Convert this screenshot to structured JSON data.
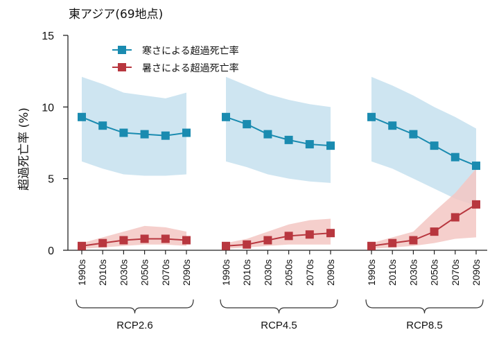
{
  "chart_data": {
    "type": "line",
    "title": "東アジア(69地点)",
    "ylabel": "超過死亡率 (%)",
    "ylim": [
      0,
      15
    ],
    "yticks": [
      0,
      5,
      10,
      15
    ],
    "x": [
      "1990s",
      "2010s",
      "2030s",
      "2050s",
      "2070s",
      "2090s"
    ],
    "legend_position": "top-left",
    "colors": {
      "cold": "#1a8bb0",
      "heat": "#b8373f",
      "cold_band": "#c6e1ee",
      "heat_band": "#f3c7c3"
    },
    "panels": [
      {
        "label": "RCP2.6",
        "series": [
          {
            "name": "寒さによる超過死亡率",
            "values": [
              9.3,
              8.7,
              8.2,
              8.1,
              8.0,
              8.2
            ],
            "lower": [
              6.2,
              5.7,
              5.3,
              5.2,
              5.2,
              5.3
            ],
            "upper": [
              12.1,
              11.6,
              11.0,
              10.8,
              10.6,
              11.0
            ]
          },
          {
            "name": "暑さによる超過死亡率",
            "values": [
              0.3,
              0.5,
              0.7,
              0.8,
              0.8,
              0.7
            ],
            "lower": [
              0.1,
              0.2,
              0.3,
              0.4,
              0.4,
              0.3
            ],
            "upper": [
              0.5,
              0.9,
              1.3,
              1.7,
              1.6,
              1.3
            ]
          }
        ]
      },
      {
        "label": "RCP4.5",
        "series": [
          {
            "name": "寒さによる超過死亡率",
            "values": [
              9.3,
              8.8,
              8.1,
              7.7,
              7.4,
              7.3
            ],
            "lower": [
              6.2,
              5.8,
              5.3,
              5.0,
              4.8,
              4.7
            ],
            "upper": [
              12.1,
              11.5,
              10.9,
              10.5,
              10.2,
              10.0
            ]
          },
          {
            "name": "暑さによる超過死亡率",
            "values": [
              0.3,
              0.4,
              0.7,
              1.0,
              1.1,
              1.2
            ],
            "lower": [
              0.1,
              0.2,
              0.3,
              0.4,
              0.4,
              0.4
            ],
            "upper": [
              0.5,
              0.8,
              1.3,
              1.8,
              2.1,
              2.2
            ]
          }
        ]
      },
      {
        "label": "RCP8.5",
        "series": [
          {
            "name": "寒さによる超過死亡率",
            "values": [
              9.3,
              8.7,
              8.1,
              7.3,
              6.5,
              5.9
            ],
            "lower": [
              6.2,
              5.7,
              5.0,
              4.3,
              3.6,
              3.1
            ],
            "upper": [
              12.1,
              11.5,
              10.8,
              10.0,
              9.3,
              8.5
            ]
          },
          {
            "name": "暑さによる超過死亡率",
            "values": [
              0.3,
              0.5,
              0.7,
              1.3,
              2.3,
              3.2
            ],
            "lower": [
              0.1,
              0.2,
              0.3,
              0.5,
              0.8,
              0.9
            ],
            "upper": [
              0.5,
              0.9,
              1.3,
              2.7,
              4.0,
              5.7
            ]
          }
        ]
      }
    ]
  }
}
